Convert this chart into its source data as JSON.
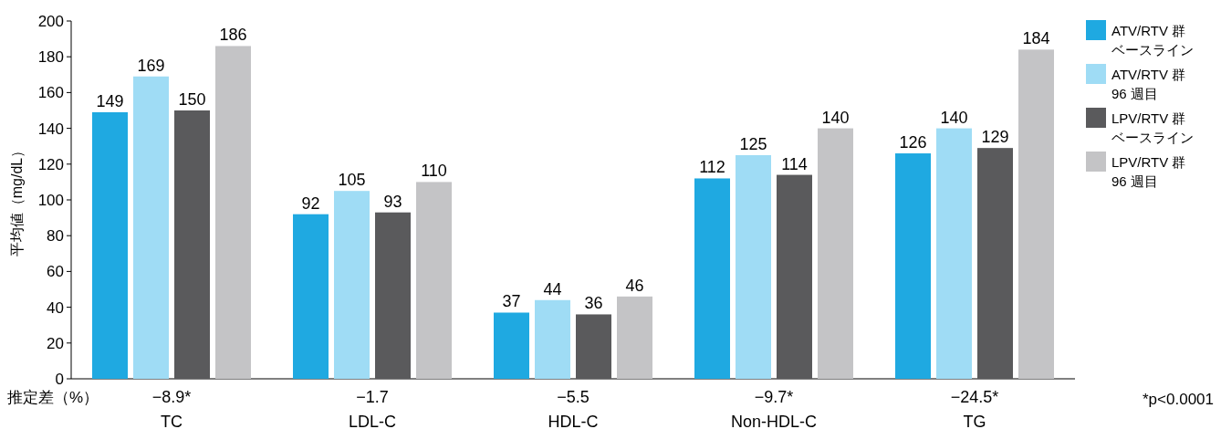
{
  "chart_data": {
    "type": "bar",
    "ylabel": "平均値（mg/dL）",
    "categories": [
      "−8.9*\nTC",
      "−1.7\nLDL-C",
      "−5.5\nHDL-C",
      "−9.7*\nNon-HDL-C",
      "−24.5*\nTG"
    ],
    "series": [
      {
        "name": "ATV/RTV 群ベースライン",
        "color": "#1fa9e1",
        "values": [
          149,
          92,
          37,
          112,
          126
        ]
      },
      {
        "name": "ATV/RTV 群96 週目",
        "color": "#9fdcf5",
        "values": [
          169,
          105,
          44,
          125,
          140
        ]
      },
      {
        "name": "LPV/RTV 群ベースライン",
        "color": "#5a5a5c",
        "values": [
          150,
          93,
          36,
          114,
          129
        ]
      },
      {
        "name": "LPV/RTV 群96 週目",
        "color": "#c4c4c6",
        "values": [
          186,
          110,
          46,
          140,
          184
        ]
      }
    ],
    "ylim": [
      0,
      200
    ],
    "yticks": [
      0,
      20,
      40,
      60,
      80,
      100,
      120,
      140,
      160,
      180,
      200
    ],
    "data_labels": true,
    "grid": false,
    "legend": "right",
    "annotations": [
      "推定差（%）",
      "*p<0.0001"
    ]
  }
}
